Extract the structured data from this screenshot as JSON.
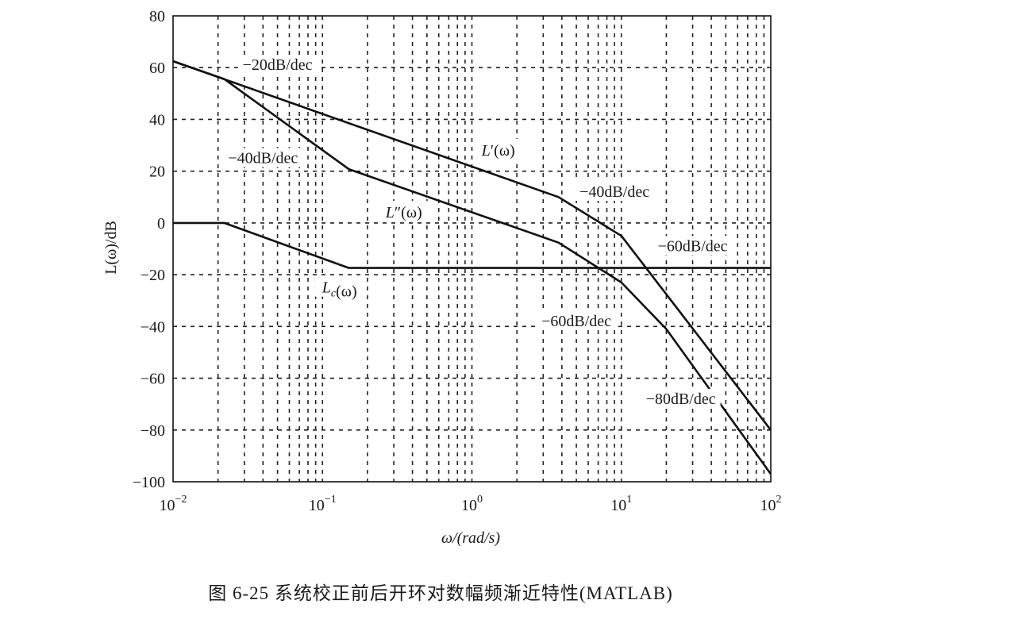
{
  "chart_data": {
    "type": "line",
    "x_scale": "log",
    "xlim": [
      0.01,
      100
    ],
    "ylim": [
      -100,
      80
    ],
    "grid": true,
    "xlabel": "ω/(rad/s)",
    "ylabel": "L(ω)/dB",
    "y_ticks": [
      80,
      60,
      40,
      20,
      0,
      -20,
      -40,
      -60,
      -80,
      -100
    ],
    "y_tick_labels": [
      "80",
      "60",
      "40",
      "20",
      "0",
      "−20",
      "−40",
      "−60",
      "−80",
      "−100"
    ],
    "x_ticks": [
      0.01,
      0.1,
      1,
      10,
      100
    ],
    "x_tick_labels": [
      {
        "base": "10",
        "exp": "−2"
      },
      {
        "base": "10",
        "exp": "−1"
      },
      {
        "base": "10",
        "exp": "0"
      },
      {
        "base": "10",
        "exp": "1"
      },
      {
        "base": "10",
        "exp": "2"
      }
    ],
    "series": [
      {
        "name": "L′(ω)",
        "x": [
          0.01,
          3.8,
          10,
          100
        ],
        "y": [
          62.5,
          10,
          -5,
          -80
        ]
      },
      {
        "name": "L″(ω)",
        "x": [
          0.01,
          0.022,
          0.15,
          3.8,
          10,
          20,
          100
        ],
        "y": [
          62.5,
          55.6,
          20.8,
          -7.6,
          -23,
          -41,
          -97
        ]
      },
      {
        "name": "Lc(ω)",
        "x": [
          0.01,
          0.022,
          0.15,
          100
        ],
        "y": [
          0,
          0,
          -17.4,
          -17.4
        ]
      }
    ],
    "annotations": [
      {
        "text": "−20dB/dec",
        "x": 0.05,
        "y": 60
      },
      {
        "text": "−40dB/dec",
        "x": 0.04,
        "y": 24
      },
      {
        "text": "−40dB/dec",
        "x": 9,
        "y": 11
      },
      {
        "text": "−60dB/dec",
        "x": 30,
        "y": -10
      },
      {
        "text": "−60dB/dec",
        "x": 5,
        "y": -39
      },
      {
        "text": "−80dB/dec",
        "x": 25,
        "y": -69
      }
    ],
    "curve_labels": [
      {
        "main": "L",
        "sup": "′",
        "sub": "",
        "arg": "(ω)",
        "x": 1.5,
        "y": 27
      },
      {
        "main": "L",
        "sup": "″",
        "sub": "",
        "arg": "(ω)",
        "x": 0.35,
        "y": 3
      },
      {
        "main": "L",
        "sup": "",
        "sub": "c",
        "arg": "(ω)",
        "x": 0.13,
        "y": -26
      }
    ]
  },
  "caption": "图 6-25   系统校正前后开环对数幅频渐近特性(MATLAB)"
}
